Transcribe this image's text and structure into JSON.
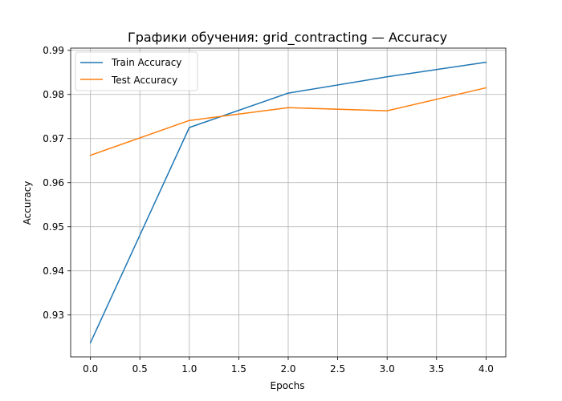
{
  "chart_data": {
    "type": "line",
    "title": "Графики обучения: grid_contracting — Accuracy",
    "xlabel": "Epochs",
    "ylabel": "Accuracy",
    "x": [
      0,
      1,
      2,
      3,
      4
    ],
    "series": [
      {
        "name": "Train Accuracy",
        "color": "#1f77b4",
        "values": [
          0.9237,
          0.9725,
          0.9803,
          0.984,
          0.9873
        ]
      },
      {
        "name": "Test Accuracy",
        "color": "#ff7f0e",
        "values": [
          0.9662,
          0.9741,
          0.977,
          0.9763,
          0.9815
        ]
      }
    ],
    "xlim": [
      -0.2,
      4.2
    ],
    "ylim": [
      0.9205,
      0.9905
    ],
    "xticks": [
      0.0,
      0.5,
      1.0,
      1.5,
      2.0,
      2.5,
      3.0,
      3.5,
      4.0
    ],
    "xtick_labels": [
      "0.0",
      "0.5",
      "1.0",
      "1.5",
      "2.0",
      "2.5",
      "3.0",
      "3.5",
      "4.0"
    ],
    "yticks": [
      0.93,
      0.94,
      0.95,
      0.96,
      0.97,
      0.98,
      0.99
    ],
    "ytick_labels": [
      "0.93",
      "0.94",
      "0.95",
      "0.96",
      "0.97",
      "0.98",
      "0.99"
    ],
    "grid": true,
    "legend_position": "top-left"
  }
}
